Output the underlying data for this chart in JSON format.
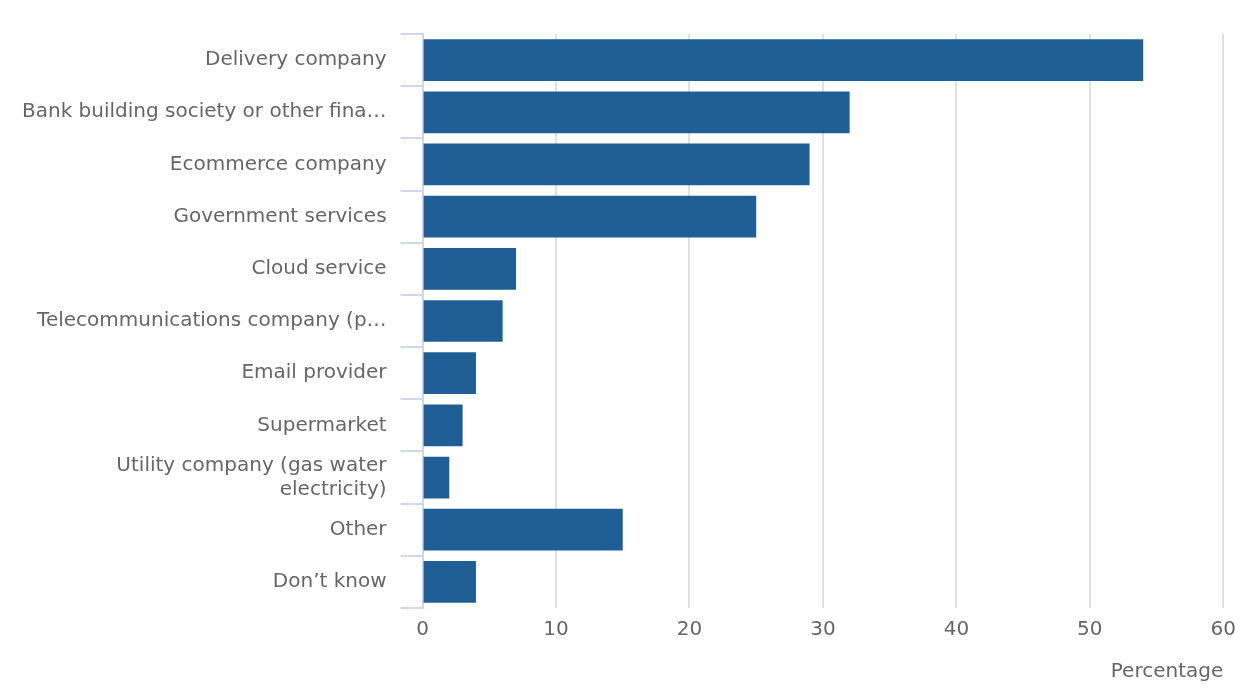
{
  "chart_data": {
    "type": "bar",
    "orientation": "horizontal",
    "xlabel": "Percentage",
    "categories": [
      "Delivery company",
      "Bank building society or other fina…",
      "Ecommerce company",
      "Government services",
      "Cloud service",
      "Telecommunications company (p…",
      "Email provider",
      "Supermarket",
      "Utility company (gas water electricity)",
      "Other",
      "Don’t know"
    ],
    "values": [
      54,
      32,
      29,
      25,
      7,
      6,
      4,
      3,
      2,
      15,
      4
    ],
    "color": "#1f5f96",
    "xlim": [
      0,
      60
    ],
    "xticks": [
      0,
      10,
      20,
      30,
      40,
      50,
      60
    ],
    "grid": "x",
    "legend": false
  }
}
